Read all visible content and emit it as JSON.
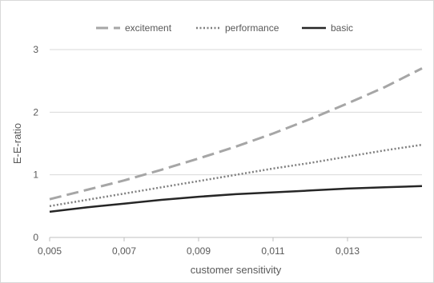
{
  "chart_data": {
    "type": "line",
    "title": "",
    "xlabel": "customer sensitivity",
    "ylabel": "E-E-ratio",
    "xlim": [
      0.005,
      0.015
    ],
    "ylim": [
      0,
      3
    ],
    "xticks": [
      0.005,
      0.007,
      0.009,
      0.011,
      0.013
    ],
    "xtick_labels": [
      "0,005",
      "0,007",
      "0,009",
      "0,011",
      "0,013"
    ],
    "yticks": [
      0,
      1,
      2,
      3
    ],
    "ytick_labels": [
      "0",
      "1",
      "2",
      "3"
    ],
    "grid": "horizontal",
    "legend_position": "top",
    "x": [
      0.005,
      0.006,
      0.007,
      0.008,
      0.009,
      0.01,
      0.011,
      0.012,
      0.013,
      0.014,
      0.015
    ],
    "series": [
      {
        "name": "excitement",
        "style": "dashed",
        "color": "#a6a6a6",
        "values": [
          0.61,
          0.76,
          0.91,
          1.08,
          1.26,
          1.45,
          1.66,
          1.89,
          2.14,
          2.4,
          2.7
        ]
      },
      {
        "name": "performance",
        "style": "dotted",
        "color": "#7f7f7f",
        "values": [
          0.5,
          0.6,
          0.7,
          0.8,
          0.9,
          1.0,
          1.1,
          1.19,
          1.29,
          1.39,
          1.48
        ]
      },
      {
        "name": "basic",
        "style": "solid",
        "color": "#262626",
        "values": [
          0.41,
          0.48,
          0.54,
          0.6,
          0.65,
          0.69,
          0.72,
          0.75,
          0.78,
          0.8,
          0.82
        ]
      }
    ]
  }
}
